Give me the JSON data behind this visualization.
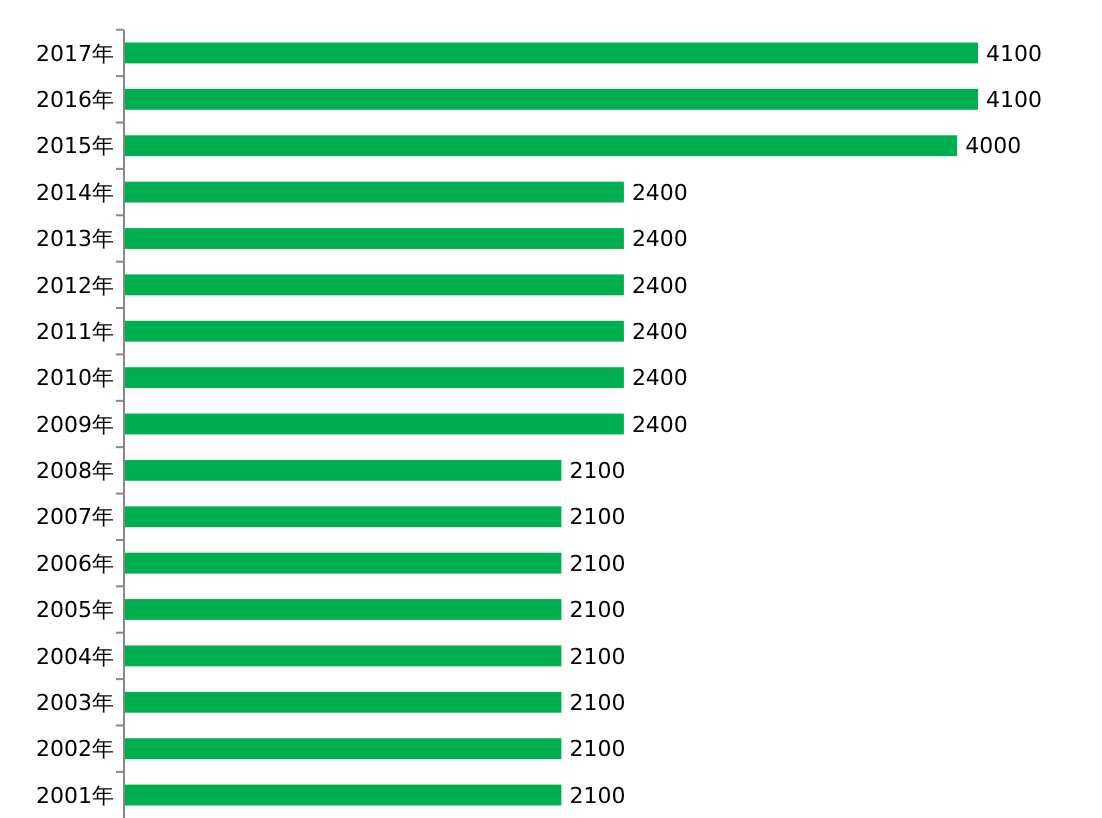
{
  "chart_data": {
    "type": "bar",
    "orientation": "horizontal",
    "data_labels": true,
    "categories": [
      "2017年",
      "2016年",
      "2015年",
      "2014年",
      "2013年",
      "2012年",
      "2011年",
      "2010年",
      "2009年",
      "2008年",
      "2007年",
      "2006年",
      "2005年",
      "2004年",
      "2003年",
      "2002年",
      "2001年"
    ],
    "values": [
      4100,
      4100,
      4000,
      2400,
      2400,
      2400,
      2400,
      2400,
      2400,
      2100,
      2100,
      2100,
      2100,
      2100,
      2100,
      2100,
      2100
    ],
    "color": "#00b050"
  }
}
